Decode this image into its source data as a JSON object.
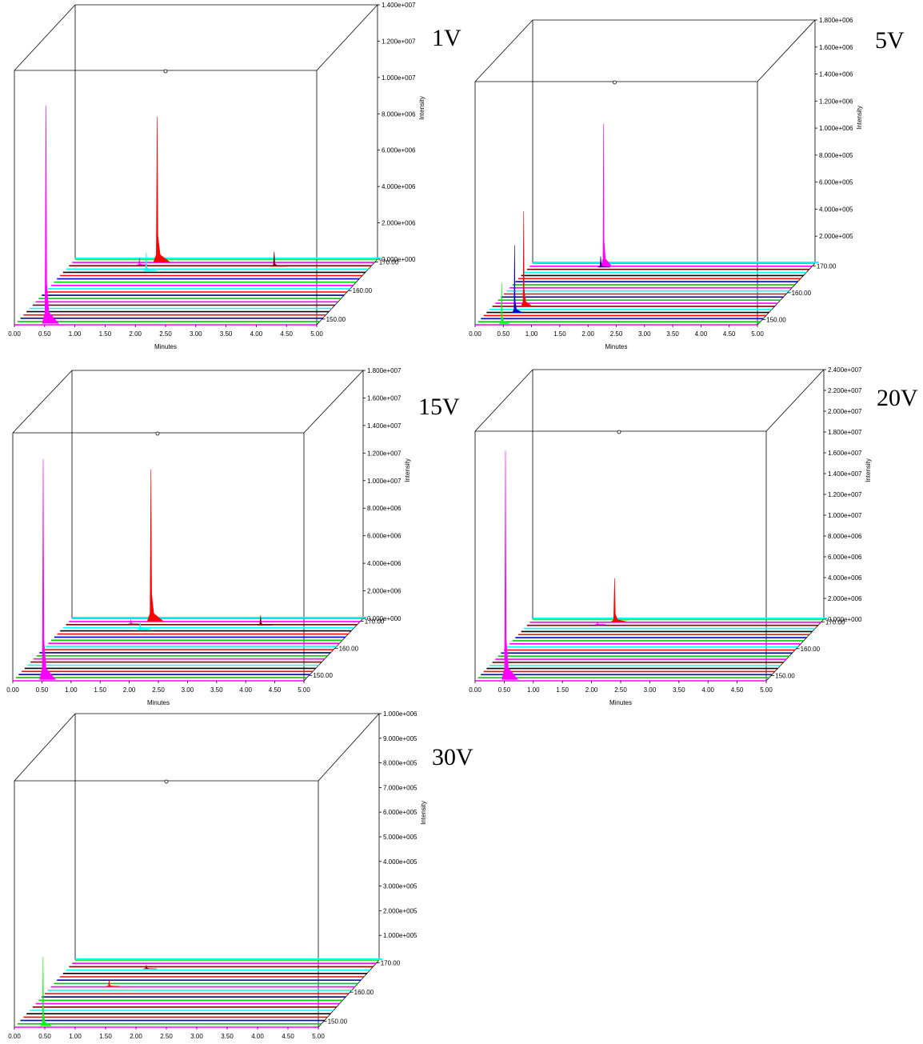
{
  "chart_data": [
    {
      "type": "area",
      "panel_label": "1V",
      "xlabel": "Minutes",
      "ylabel": "Intensity",
      "x_ticks": [
        "0.00",
        "0.50",
        "1.00",
        "1.50",
        "2.00",
        "2.50",
        "3.00",
        "3.50",
        "4.00",
        "4.50",
        "5.00"
      ],
      "xlim": [
        0,
        5
      ],
      "y_ticks": [
        "0.000e+000",
        "2.000e+006",
        "4.000e+006",
        "6.000e+006",
        "8.000e+006",
        "1.000e+007",
        "1.200e+007",
        "1.400e+007"
      ],
      "ylim": [
        0,
        14000000
      ],
      "z_ticks": [
        "150.00",
        "160.00",
        "170.00"
      ],
      "zlim": [
        148,
        171
      ],
      "peaks": [
        {
          "color": "#ff00ff",
          "rt": 0.5,
          "mass": 148.5,
          "height": 12000000,
          "width": 0.06
        },
        {
          "color": "#ff0000",
          "rt": 1.4,
          "mass": 170,
          "height": 8000000,
          "width": 0.06
        },
        {
          "color": "#00ffff",
          "rt": 1.35,
          "mass": 167,
          "height": 1000000,
          "width": 0.05
        },
        {
          "color": "#ff00ff",
          "rt": 1.15,
          "mass": 169,
          "height": 400000,
          "width": 0.04
        },
        {
          "color": "#800000",
          "rt": 3.4,
          "mass": 168.5,
          "height": 800000,
          "width": 0.06
        }
      ]
    },
    {
      "type": "area",
      "panel_label": "5V",
      "xlabel": "Minutes",
      "ylabel": "Intensity",
      "x_ticks": [
        "0.00",
        "0.50",
        "1.00",
        "1.50",
        "2.00",
        "2.50",
        "3.00",
        "3.50",
        "4.00",
        "4.50",
        "5.00"
      ],
      "xlim": [
        0,
        5
      ],
      "y_ticks": [
        "2.000e+005",
        "4.000e+005",
        "6.000e+005",
        "8.000e+005",
        "1.000e+006",
        "1.200e+006",
        "1.400e+006",
        "1.600e+006",
        "1.800e+006"
      ],
      "ylim": [
        0,
        1800000
      ],
      "z_ticks": [
        "150.00",
        "160.00",
        "170.00"
      ],
      "zlim": [
        148,
        171
      ],
      "peaks": [
        {
          "color": "#ff00ff",
          "rt": 1.3,
          "mass": 170,
          "height": 1050000,
          "width": 0.04
        },
        {
          "color": "#000080",
          "rt": 1.27,
          "mass": 169.5,
          "height": 80000,
          "width": 0.05
        },
        {
          "color": "#ff0000",
          "rt": 0.55,
          "mass": 155,
          "height": 700000,
          "width": 0.04
        },
        {
          "color": "#0000cd",
          "rt": 0.5,
          "mass": 152.5,
          "height": 500000,
          "width": 0.04
        },
        {
          "color": "#00ff00",
          "rt": 0.45,
          "mass": 148.5,
          "height": 300000,
          "width": 0.04
        }
      ]
    },
    {
      "type": "area",
      "panel_label": "15V",
      "xlabel": "Minutes",
      "ylabel": "Intensity",
      "x_ticks": [
        "0.00",
        "0.50",
        "1.00",
        "1.50",
        "2.00",
        "2.50",
        "3.00",
        "3.50",
        "4.00",
        "4.50",
        "5.00"
      ],
      "xlim": [
        0,
        5
      ],
      "y_ticks": [
        "0.000e+000",
        "2.000e+006",
        "4.000e+006",
        "6.000e+006",
        "8.000e+006",
        "1.000e+007",
        "1.200e+007",
        "1.400e+007",
        "1.600e+007",
        "1.800e+007"
      ],
      "ylim": [
        0,
        18000000
      ],
      "z_ticks": [
        "150.00",
        "160.00",
        "170.00"
      ],
      "zlim": [
        148,
        171
      ],
      "peaks": [
        {
          "color": "#ff00ff",
          "rt": 0.5,
          "mass": 148.5,
          "height": 16000000,
          "width": 0.06
        },
        {
          "color": "#ff0000",
          "rt": 1.4,
          "mass": 170,
          "height": 11000000,
          "width": 0.06
        },
        {
          "color": "#00ffff",
          "rt": 1.35,
          "mass": 167,
          "height": 500000,
          "width": 0.05
        },
        {
          "color": "#ff00ff",
          "rt": 1.1,
          "mass": 169,
          "height": 300000,
          "width": 0.04
        },
        {
          "color": "#800000",
          "rt": 3.35,
          "mass": 168.5,
          "height": 700000,
          "width": 0.06
        }
      ]
    },
    {
      "type": "area",
      "panel_label": "20V",
      "xlabel": "Minutes",
      "ylabel": "Intensity",
      "x_ticks": [
        "0.00",
        "0.50",
        "1.00",
        "1.50",
        "2.00",
        "2.50",
        "3.00",
        "3.50",
        "4.00",
        "4.50",
        "5.00"
      ],
      "xlim": [
        0,
        5
      ],
      "y_ticks": [
        "0.000e+000",
        "2.000e+006",
        "4.000e+006",
        "6.000e+006",
        "8.000e+006",
        "1.000e+007",
        "1.200e+007",
        "1.400e+007",
        "1.600e+007",
        "1.800e+007",
        "2.000e+007",
        "2.200e+007",
        "2.400e+007"
      ],
      "ylim": [
        0,
        24000000
      ],
      "z_ticks": [
        "150.00",
        "160.00",
        "170.00"
      ],
      "zlim": [
        148,
        171
      ],
      "peaks": [
        {
          "color": "#ff00ff",
          "rt": 0.5,
          "mass": 148.5,
          "height": 22000000,
          "width": 0.06
        },
        {
          "color": "#ff0000",
          "rt": 1.45,
          "mass": 170,
          "height": 4200000,
          "width": 0.06
        },
        {
          "color": "#00ffff",
          "rt": 1.5,
          "mass": 170.5,
          "height": 300000,
          "width": 0.05
        },
        {
          "color": "#ff00ff",
          "rt": 1.2,
          "mass": 169,
          "height": 200000,
          "width": 0.04
        }
      ]
    },
    {
      "type": "area",
      "panel_label": "30V",
      "xlabel": "Minutes",
      "ylabel": "Intensity",
      "x_ticks": [
        "0.00",
        "0.50",
        "1.00",
        "1.50",
        "2.00",
        "2.50",
        "3.00",
        "3.50",
        "4.00",
        "4.50",
        "5.00"
      ],
      "xlim": [
        0,
        5
      ],
      "y_ticks": [
        "1.000e+005",
        "2.000e+005",
        "3.000e+005",
        "4.000e+005",
        "5.000e+005",
        "6.000e+005",
        "7.000e+005",
        "8.000e+005",
        "9.000e+005",
        "1.000e+006"
      ],
      "ylim": [
        0,
        1000000
      ],
      "z_ticks": [
        "150.00",
        "160.00",
        "170.00"
      ],
      "zlim": [
        148,
        171
      ],
      "peaks": [
        {
          "color": "#00ff00",
          "rt": 0.45,
          "mass": 148.5,
          "height": 280000,
          "width": 0.04
        },
        {
          "color": "#ff0000",
          "rt": 0.95,
          "mass": 162,
          "height": 25000,
          "width": 0.05
        },
        {
          "color": "#800000",
          "rt": 1.3,
          "mass": 168,
          "height": 15000,
          "width": 0.05
        }
      ]
    }
  ]
}
